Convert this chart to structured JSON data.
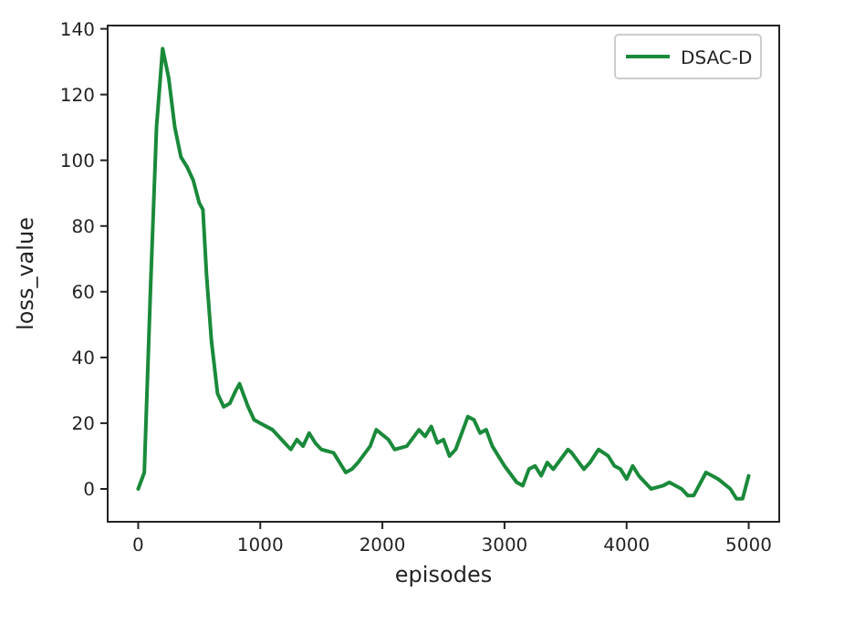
{
  "chart_data": {
    "type": "line",
    "xlabel": "episodes",
    "ylabel": "loss_value",
    "xlim": [
      -250,
      5250
    ],
    "ylim": [
      -10,
      141
    ],
    "xticks": [
      0,
      1000,
      2000,
      3000,
      4000,
      5000
    ],
    "yticks": [
      0,
      20,
      40,
      60,
      80,
      100,
      120,
      140
    ],
    "legend": "top right",
    "grid": false,
    "series": [
      {
        "name": "DSAC-D",
        "color": "#1a8a3a",
        "x": [
          0,
          50,
          100,
          150,
          200,
          250,
          300,
          350,
          400,
          450,
          500,
          530,
          560,
          600,
          650,
          700,
          750,
          800,
          830,
          870,
          900,
          950,
          1000,
          1100,
          1200,
          1250,
          1300,
          1350,
          1400,
          1450,
          1500,
          1600,
          1700,
          1750,
          1800,
          1900,
          1950,
          2050,
          2100,
          2200,
          2300,
          2350,
          2400,
          2450,
          2500,
          2550,
          2600,
          2700,
          2750,
          2800,
          2850,
          2900,
          3000,
          3100,
          3150,
          3200,
          3250,
          3300,
          3350,
          3400,
          3520,
          3550,
          3650,
          3700,
          3770,
          3850,
          3900,
          3950,
          4000,
          4050,
          4100,
          4200,
          4300,
          4350,
          4450,
          4500,
          4550,
          4650,
          4700,
          4750,
          4850,
          4900,
          4950,
          5000
        ],
        "values": [
          0,
          5,
          60,
          110,
          134,
          125,
          110,
          101,
          98,
          94,
          87,
          85,
          65,
          45,
          29,
          25,
          26,
          30,
          32,
          28,
          25,
          21,
          20,
          18,
          14,
          12,
          15,
          13,
          17,
          14,
          12,
          11,
          5,
          6,
          8,
          13,
          18,
          15,
          12,
          13,
          18,
          16,
          19,
          14,
          15,
          10,
          12,
          22,
          21,
          17,
          18,
          13,
          7,
          2,
          1,
          6,
          7,
          4,
          8,
          6,
          12,
          11,
          6,
          8,
          12,
          10,
          7,
          6,
          3,
          7,
          4,
          0,
          1,
          2,
          0,
          -2,
          -2,
          5,
          4,
          3,
          0,
          -3,
          -3,
          4
        ]
      }
    ]
  }
}
